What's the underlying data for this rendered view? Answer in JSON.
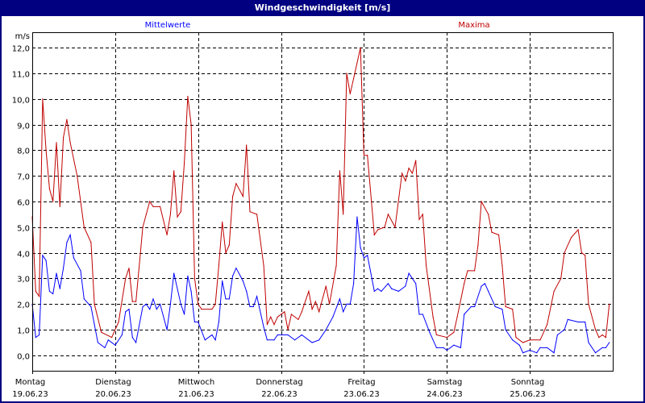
{
  "window": {
    "title": "Windgeschwindigkeit [m/s]"
  },
  "chart_data": {
    "type": "line",
    "title": "Windgeschwindigkeit [m/s]",
    "ylabel": "m/s",
    "ylim": [
      -0.6,
      12.6
    ],
    "yticks": [
      0,
      1,
      2,
      3,
      4,
      5,
      6,
      7,
      8,
      9,
      10,
      11,
      12
    ],
    "ytick_labels": [
      "0,0",
      "1,0",
      "2,0",
      "3,0",
      "4,0",
      "5,0",
      "6,0",
      "7,0",
      "8,0",
      "9,0",
      "10,0",
      "11,0",
      "12,0"
    ],
    "xlim": [
      "2023-06-19 00:00",
      "2023-06-26 00:00"
    ],
    "xticks": [
      {
        "day": "Montag",
        "date": "19.06.23"
      },
      {
        "day": "Dienstag",
        "date": "20.06.23"
      },
      {
        "day": "Mittwoch",
        "date": "21.06.23"
      },
      {
        "day": "Donnerstag",
        "date": "22.06.23"
      },
      {
        "day": "Freitag",
        "date": "23.06.23"
      },
      {
        "day": "Samstag",
        "date": "24.06.23"
      },
      {
        "day": "Sonntag",
        "date": "25.06.23"
      }
    ],
    "grid": true,
    "legend_placement": "top",
    "series": [
      {
        "name": "Mittelwerte",
        "color": "#0000ff",
        "points": [
          [
            "2023-06-19 00:00",
            2.0
          ],
          [
            "2023-06-19 01:00",
            0.7
          ],
          [
            "2023-06-19 02:00",
            0.8
          ],
          [
            "2023-06-19 03:00",
            3.9
          ],
          [
            "2023-06-19 04:00",
            3.7
          ],
          [
            "2023-06-19 05:00",
            2.5
          ],
          [
            "2023-06-19 06:00",
            2.4
          ],
          [
            "2023-06-19 07:00",
            3.2
          ],
          [
            "2023-06-19 08:00",
            2.6
          ],
          [
            "2023-06-19 09:00",
            3.4
          ],
          [
            "2023-06-19 10:00",
            4.4
          ],
          [
            "2023-06-19 11:00",
            4.7
          ],
          [
            "2023-06-19 12:00",
            3.8
          ],
          [
            "2023-06-19 14:00",
            3.3
          ],
          [
            "2023-06-19 15:00",
            2.2
          ],
          [
            "2023-06-19 17:00",
            1.9
          ],
          [
            "2023-06-19 18:00",
            1.2
          ],
          [
            "2023-06-19 19:00",
            0.5
          ],
          [
            "2023-06-19 21:00",
            0.3
          ],
          [
            "2023-06-19 22:00",
            0.6
          ],
          [
            "2023-06-20 00:00",
            0.4
          ],
          [
            "2023-06-20 02:00",
            0.8
          ],
          [
            "2023-06-20 03:00",
            1.7
          ],
          [
            "2023-06-20 04:00",
            1.8
          ],
          [
            "2023-06-20 05:00",
            0.7
          ],
          [
            "2023-06-20 06:00",
            0.5
          ],
          [
            "2023-06-20 08:00",
            1.9
          ],
          [
            "2023-06-20 09:00",
            2.0
          ],
          [
            "2023-06-20 10:00",
            1.8
          ],
          [
            "2023-06-20 11:00",
            2.2
          ],
          [
            "2023-06-20 12:00",
            1.8
          ],
          [
            "2023-06-20 13:00",
            2.0
          ],
          [
            "2023-06-20 15:00",
            1.0
          ],
          [
            "2023-06-20 16:00",
            2.0
          ],
          [
            "2023-06-20 17:00",
            3.2
          ],
          [
            "2023-06-20 19:00",
            2.0
          ],
          [
            "2023-06-20 20:00",
            1.6
          ],
          [
            "2023-06-20 21:00",
            3.1
          ],
          [
            "2023-06-20 22:00",
            2.5
          ],
          [
            "2023-06-20 23:00",
            1.3
          ],
          [
            "2023-06-21 00:00",
            1.3
          ],
          [
            "2023-06-21 02:00",
            0.6
          ],
          [
            "2023-06-21 04:00",
            0.8
          ],
          [
            "2023-06-21 05:00",
            0.6
          ],
          [
            "2023-06-21 06:00",
            1.3
          ],
          [
            "2023-06-21 07:00",
            2.9
          ],
          [
            "2023-06-21 08:00",
            2.2
          ],
          [
            "2023-06-21 09:00",
            2.2
          ],
          [
            "2023-06-21 10:00",
            3.1
          ],
          [
            "2023-06-21 11:00",
            3.4
          ],
          [
            "2023-06-21 13:00",
            2.9
          ],
          [
            "2023-06-21 14:00",
            2.5
          ],
          [
            "2023-06-21 15:00",
            1.9
          ],
          [
            "2023-06-21 16:00",
            1.9
          ],
          [
            "2023-06-21 17:00",
            2.3
          ],
          [
            "2023-06-21 19:00",
            1.1
          ],
          [
            "2023-06-21 20:00",
            0.6
          ],
          [
            "2023-06-21 22:00",
            0.6
          ],
          [
            "2023-06-21 23:00",
            0.8
          ],
          [
            "2023-06-22 02:00",
            0.8
          ],
          [
            "2023-06-22 04:00",
            0.6
          ],
          [
            "2023-06-22 06:00",
            0.8
          ],
          [
            "2023-06-22 09:00",
            0.5
          ],
          [
            "2023-06-22 11:00",
            0.6
          ],
          [
            "2023-06-22 13:00",
            1.0
          ],
          [
            "2023-06-22 15:00",
            1.5
          ],
          [
            "2023-06-22 17:00",
            2.2
          ],
          [
            "2023-06-22 18:00",
            1.7
          ],
          [
            "2023-06-22 19:00",
            2.0
          ],
          [
            "2023-06-22 20:00",
            2.0
          ],
          [
            "2023-06-22 21:00",
            2.8
          ],
          [
            "2023-06-22 22:00",
            5.4
          ],
          [
            "2023-06-22 23:00",
            4.2
          ],
          [
            "2023-06-23 00:00",
            3.8
          ],
          [
            "2023-06-23 01:00",
            3.9
          ],
          [
            "2023-06-23 03:00",
            2.5
          ],
          [
            "2023-06-23 04:00",
            2.6
          ],
          [
            "2023-06-23 05:00",
            2.5
          ],
          [
            "2023-06-23 07:00",
            2.8
          ],
          [
            "2023-06-23 08:00",
            2.6
          ],
          [
            "2023-06-23 10:00",
            2.5
          ],
          [
            "2023-06-23 12:00",
            2.7
          ],
          [
            "2023-06-23 13:00",
            3.2
          ],
          [
            "2023-06-23 15:00",
            2.8
          ],
          [
            "2023-06-23 16:00",
            1.6
          ],
          [
            "2023-06-23 17:00",
            1.6
          ],
          [
            "2023-06-23 19:00",
            0.9
          ],
          [
            "2023-06-23 21:00",
            0.3
          ],
          [
            "2023-06-23 23:00",
            0.3
          ],
          [
            "2023-06-24 00:00",
            0.2
          ],
          [
            "2023-06-24 02:00",
            0.4
          ],
          [
            "2023-06-24 04:00",
            0.3
          ],
          [
            "2023-06-24 05:00",
            1.6
          ],
          [
            "2023-06-24 07:00",
            1.9
          ],
          [
            "2023-06-24 08:00",
            1.9
          ],
          [
            "2023-06-24 10:00",
            2.7
          ],
          [
            "2023-06-24 11:00",
            2.8
          ],
          [
            "2023-06-24 12:00",
            2.5
          ],
          [
            "2023-06-24 14:00",
            1.9
          ],
          [
            "2023-06-24 16:00",
            1.8
          ],
          [
            "2023-06-24 17:00",
            1.0
          ],
          [
            "2023-06-24 19:00",
            0.6
          ],
          [
            "2023-06-24 21:00",
            0.4
          ],
          [
            "2023-06-24 22:00",
            0.1
          ],
          [
            "2023-06-25 00:00",
            0.2
          ],
          [
            "2023-06-25 02:00",
            0.1
          ],
          [
            "2023-06-25 03:00",
            0.3
          ],
          [
            "2023-06-25 05:00",
            0.3
          ],
          [
            "2023-06-25 07:00",
            0.1
          ],
          [
            "2023-06-25 08:00",
            0.8
          ],
          [
            "2023-06-25 10:00",
            1.0
          ],
          [
            "2023-06-25 11:00",
            1.4
          ],
          [
            "2023-06-25 14:00",
            1.3
          ],
          [
            "2023-06-25 16:00",
            1.3
          ],
          [
            "2023-06-25 17:00",
            0.5
          ],
          [
            "2023-06-25 19:00",
            0.1
          ],
          [
            "2023-06-25 21:00",
            0.3
          ],
          [
            "2023-06-25 22:00",
            0.3
          ],
          [
            "2023-06-25 23:00",
            0.5
          ]
        ]
      },
      {
        "name": "Maxima",
        "color": "#c00000",
        "points": [
          [
            "2023-06-19 00:00",
            5.4
          ],
          [
            "2023-06-19 01:00",
            2.5
          ],
          [
            "2023-06-19 02:00",
            2.3
          ],
          [
            "2023-06-19 03:00",
            10.0
          ],
          [
            "2023-06-19 04:00",
            8.0
          ],
          [
            "2023-06-19 05:00",
            6.5
          ],
          [
            "2023-06-19 06:00",
            6.0
          ],
          [
            "2023-06-19 07:00",
            8.3
          ],
          [
            "2023-06-19 08:00",
            5.8
          ],
          [
            "2023-06-19 09:00",
            8.5
          ],
          [
            "2023-06-19 10:00",
            9.2
          ],
          [
            "2023-06-19 11:00",
            8.3
          ],
          [
            "2023-06-19 13:00",
            7.0
          ],
          [
            "2023-06-19 15:00",
            5.0
          ],
          [
            "2023-06-19 17:00",
            4.4
          ],
          [
            "2023-06-19 18:00",
            2.0
          ],
          [
            "2023-06-19 20:00",
            0.9
          ],
          [
            "2023-06-19 23:00",
            0.7
          ],
          [
            "2023-06-20 01:00",
            1.3
          ],
          [
            "2023-06-20 03:00",
            3.0
          ],
          [
            "2023-06-20 04:00",
            3.4
          ],
          [
            "2023-06-20 05:00",
            2.1
          ],
          [
            "2023-06-20 06:00",
            2.1
          ],
          [
            "2023-06-20 08:00",
            5.0
          ],
          [
            "2023-06-20 09:00",
            5.5
          ],
          [
            "2023-06-20 10:00",
            6.0
          ],
          [
            "2023-06-20 11:00",
            5.8
          ],
          [
            "2023-06-20 13:00",
            5.8
          ],
          [
            "2023-06-20 15:00",
            4.7
          ],
          [
            "2023-06-20 16:00",
            5.5
          ],
          [
            "2023-06-20 17:00",
            7.2
          ],
          [
            "2023-06-20 18:00",
            5.4
          ],
          [
            "2023-06-20 19:00",
            5.6
          ],
          [
            "2023-06-20 20:00",
            7.5
          ],
          [
            "2023-06-20 21:00",
            10.1
          ],
          [
            "2023-06-20 22:00",
            9.0
          ],
          [
            "2023-06-20 23:00",
            3.0
          ],
          [
            "2023-06-21 00:00",
            2.0
          ],
          [
            "2023-06-21 01:00",
            1.8
          ],
          [
            "2023-06-21 04:00",
            1.8
          ],
          [
            "2023-06-21 05:00",
            2.0
          ],
          [
            "2023-06-21 06:00",
            3.5
          ],
          [
            "2023-06-21 07:00",
            5.2
          ],
          [
            "2023-06-21 08:00",
            4.0
          ],
          [
            "2023-06-21 09:00",
            4.3
          ],
          [
            "2023-06-21 10:00",
            6.2
          ],
          [
            "2023-06-21 11:00",
            6.7
          ],
          [
            "2023-06-21 13:00",
            6.2
          ],
          [
            "2023-06-21 14:00",
            8.2
          ],
          [
            "2023-06-21 15:00",
            5.6
          ],
          [
            "2023-06-21 17:00",
            5.5
          ],
          [
            "2023-06-21 19:00",
            3.5
          ],
          [
            "2023-06-21 20:00",
            1.2
          ],
          [
            "2023-06-21 21:00",
            1.5
          ],
          [
            "2023-06-21 22:00",
            1.2
          ],
          [
            "2023-06-21 23:00",
            1.5
          ],
          [
            "2023-06-22 01:00",
            1.7
          ],
          [
            "2023-06-22 02:00",
            1.0
          ],
          [
            "2023-06-22 03:00",
            1.6
          ],
          [
            "2023-06-22 05:00",
            1.4
          ],
          [
            "2023-06-22 06:00",
            1.7
          ],
          [
            "2023-06-22 08:00",
            2.5
          ],
          [
            "2023-06-22 09:00",
            1.8
          ],
          [
            "2023-06-22 10:00",
            2.1
          ],
          [
            "2023-06-22 11:00",
            1.7
          ],
          [
            "2023-06-22 13:00",
            2.7
          ],
          [
            "2023-06-22 14:00",
            2.0
          ],
          [
            "2023-06-22 16:00",
            3.5
          ],
          [
            "2023-06-22 17:00",
            7.2
          ],
          [
            "2023-06-22 18:00",
            5.5
          ],
          [
            "2023-06-22 19:00",
            11.0
          ],
          [
            "2023-06-22 20:00",
            10.2
          ],
          [
            "2023-06-22 21:00",
            10.8
          ],
          [
            "2023-06-22 23:00",
            12.0
          ],
          [
            "2023-06-23 00:00",
            7.8
          ],
          [
            "2023-06-23 01:00",
            7.8
          ],
          [
            "2023-06-23 03:00",
            4.7
          ],
          [
            "2023-06-23 04:00",
            4.9
          ],
          [
            "2023-06-23 06:00",
            5.0
          ],
          [
            "2023-06-23 07:00",
            5.5
          ],
          [
            "2023-06-23 09:00",
            5.0
          ],
          [
            "2023-06-23 11:00",
            7.1
          ],
          [
            "2023-06-23 12:00",
            6.8
          ],
          [
            "2023-06-23 13:00",
            7.3
          ],
          [
            "2023-06-23 14:00",
            7.1
          ],
          [
            "2023-06-23 15:00",
            7.6
          ],
          [
            "2023-06-23 16:00",
            5.3
          ],
          [
            "2023-06-23 17:00",
            5.5
          ],
          [
            "2023-06-23 18:00",
            3.5
          ],
          [
            "2023-06-23 20:00",
            1.5
          ],
          [
            "2023-06-23 21:00",
            0.8
          ],
          [
            "2023-06-24 00:00",
            0.7
          ],
          [
            "2023-06-24 02:00",
            0.9
          ],
          [
            "2023-06-24 03:00",
            1.5
          ],
          [
            "2023-06-24 05:00",
            2.8
          ],
          [
            "2023-06-24 06:00",
            3.3
          ],
          [
            "2023-06-24 08:00",
            3.3
          ],
          [
            "2023-06-24 09:00",
            4.3
          ],
          [
            "2023-06-24 10:00",
            6.0
          ],
          [
            "2023-06-24 12:00",
            5.5
          ],
          [
            "2023-06-24 13:00",
            4.8
          ],
          [
            "2023-06-24 15:00",
            4.7
          ],
          [
            "2023-06-24 16:00",
            3.5
          ],
          [
            "2023-06-24 17:00",
            1.9
          ],
          [
            "2023-06-24 19:00",
            1.8
          ],
          [
            "2023-06-24 20:00",
            0.7
          ],
          [
            "2023-06-24 22:00",
            0.5
          ],
          [
            "2023-06-25 00:00",
            0.6
          ],
          [
            "2023-06-25 03:00",
            0.6
          ],
          [
            "2023-06-25 05:00",
            1.2
          ],
          [
            "2023-06-25 07:00",
            2.5
          ],
          [
            "2023-06-25 09:00",
            3.0
          ],
          [
            "2023-06-25 10:00",
            4.0
          ],
          [
            "2023-06-25 12:00",
            4.6
          ],
          [
            "2023-06-25 14:00",
            4.9
          ],
          [
            "2023-06-25 15:00",
            4.0
          ],
          [
            "2023-06-25 16:00",
            3.9
          ],
          [
            "2023-06-25 17:00",
            2.0
          ],
          [
            "2023-06-25 19:00",
            1.0
          ],
          [
            "2023-06-25 20:00",
            0.7
          ],
          [
            "2023-06-25 21:00",
            0.8
          ],
          [
            "2023-06-25 22:00",
            0.7
          ],
          [
            "2023-06-25 23:00",
            2.0
          ]
        ]
      }
    ]
  }
}
